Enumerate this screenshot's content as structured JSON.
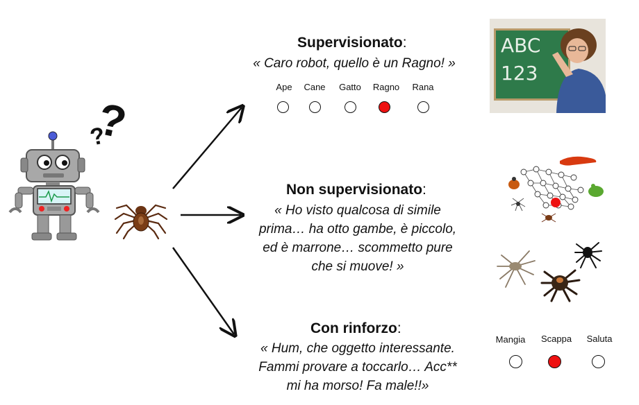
{
  "supervised": {
    "title": "Supervisionato",
    "colon": ":",
    "quote": "« Caro robot, quello è un Ragno! »",
    "options": [
      {
        "label": "Ape",
        "selected": false
      },
      {
        "label": "Cane",
        "selected": false
      },
      {
        "label": "Gatto",
        "selected": false
      },
      {
        "label": "Ragno",
        "selected": true
      },
      {
        "label": "Rana",
        "selected": false
      }
    ],
    "chalkboard_text": [
      "ABC",
      "123"
    ]
  },
  "unsupervised": {
    "title": "Non supervisionato",
    "colon": ":",
    "quote_lines": [
      "« Ho visto qualcosa di simile",
      "prima… ha otto gambe, è piccolo,",
      "ed è marrone… scommetto pure",
      "che si muove! »"
    ]
  },
  "reinforcement": {
    "title": "Con rinforzo",
    "colon": ":",
    "quote_lines": [
      "« Hum, che oggetto interessante.",
      "Fammi provare a toccarlo… Acc**",
      "mi ha morso! Fa male!!»"
    ],
    "options": [
      {
        "label": "Mangia",
        "selected": false
      },
      {
        "label": "Scappa",
        "selected": true
      },
      {
        "label": "Saluta",
        "selected": false
      }
    ]
  },
  "robot": {
    "thought": "?"
  },
  "colors": {
    "selected": "#ee1111",
    "chalkboard": "#2e7a4a",
    "robot": "#9a9a9a"
  }
}
